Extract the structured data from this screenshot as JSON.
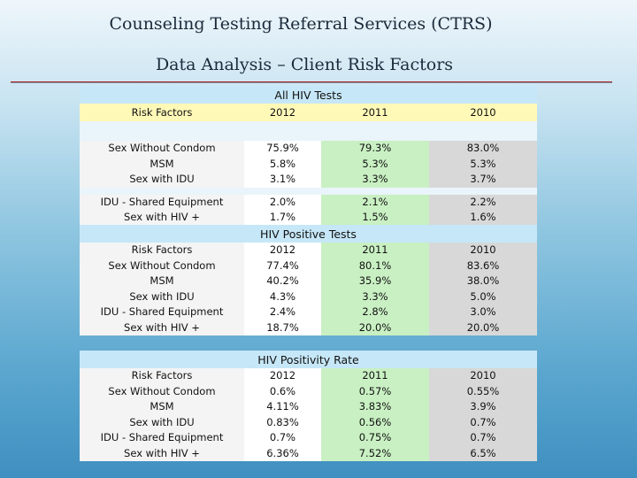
{
  "slide": {
    "title": "Counseling Testing Referral Services (CTRS)",
    "subtitle": "Data Analysis – Client Risk Factors"
  },
  "table1": {
    "title": "All HIV Tests",
    "col_label": "Risk Factors",
    "years": [
      "2012",
      "2011",
      "2010"
    ],
    "group1": {
      "labels": [
        "Sex Without Condom",
        "MSM",
        "Sex with IDU"
      ],
      "y2012": [
        "75.9%",
        "5.8%",
        "3.1%"
      ],
      "y2011": [
        "79.3%",
        "5.3%",
        "3.3%"
      ],
      "y2010": [
        "83.0%",
        "5.3%",
        "3.7%"
      ]
    },
    "group2": {
      "labels": [
        "IDU - Shared Equipment",
        "Sex with HIV +"
      ],
      "y2012": [
        "2.0%",
        "1.7%"
      ],
      "y2011": [
        "2.1%",
        "1.5%"
      ],
      "y2010": [
        "2.2%",
        "1.6%"
      ]
    }
  },
  "table2": {
    "title": "HIV Positive Tests",
    "col_label": "Risk Factors",
    "years": [
      "2012",
      "2011",
      "2010"
    ],
    "labels": [
      "Sex Without Condom",
      "MSM",
      "Sex with IDU",
      "IDU - Shared Equipment",
      "Sex with HIV +"
    ],
    "y2012": [
      "77.4%",
      "40.2%",
      "4.3%",
      "2.4%",
      "18.7%"
    ],
    "y2011": [
      "80.1%",
      "35.9%",
      "3.3%",
      "2.8%",
      "20.0%"
    ],
    "y2010": [
      "83.6%",
      "38.0%",
      "5.0%",
      "3.0%",
      "20.0%"
    ]
  },
  "table3": {
    "title": "HIV Positivity Rate",
    "col_label": "Risk Factors",
    "years": [
      "2012",
      "2011",
      "2010"
    ],
    "labels": [
      "Sex Without Condom",
      "MSM",
      "Sex with IDU",
      "IDU - Shared Equipment",
      "Sex with HIV +"
    ],
    "y2012": [
      "0.6%",
      "4.11%",
      "0.83%",
      "0.7%",
      "6.36%"
    ],
    "y2011": [
      "0.57%",
      "3.83%",
      "0.56%",
      "0.75%",
      "7.52%"
    ],
    "y2010": [
      "0.55%",
      "3.9%",
      "0.7%",
      "0.7%",
      "6.5%"
    ]
  }
}
